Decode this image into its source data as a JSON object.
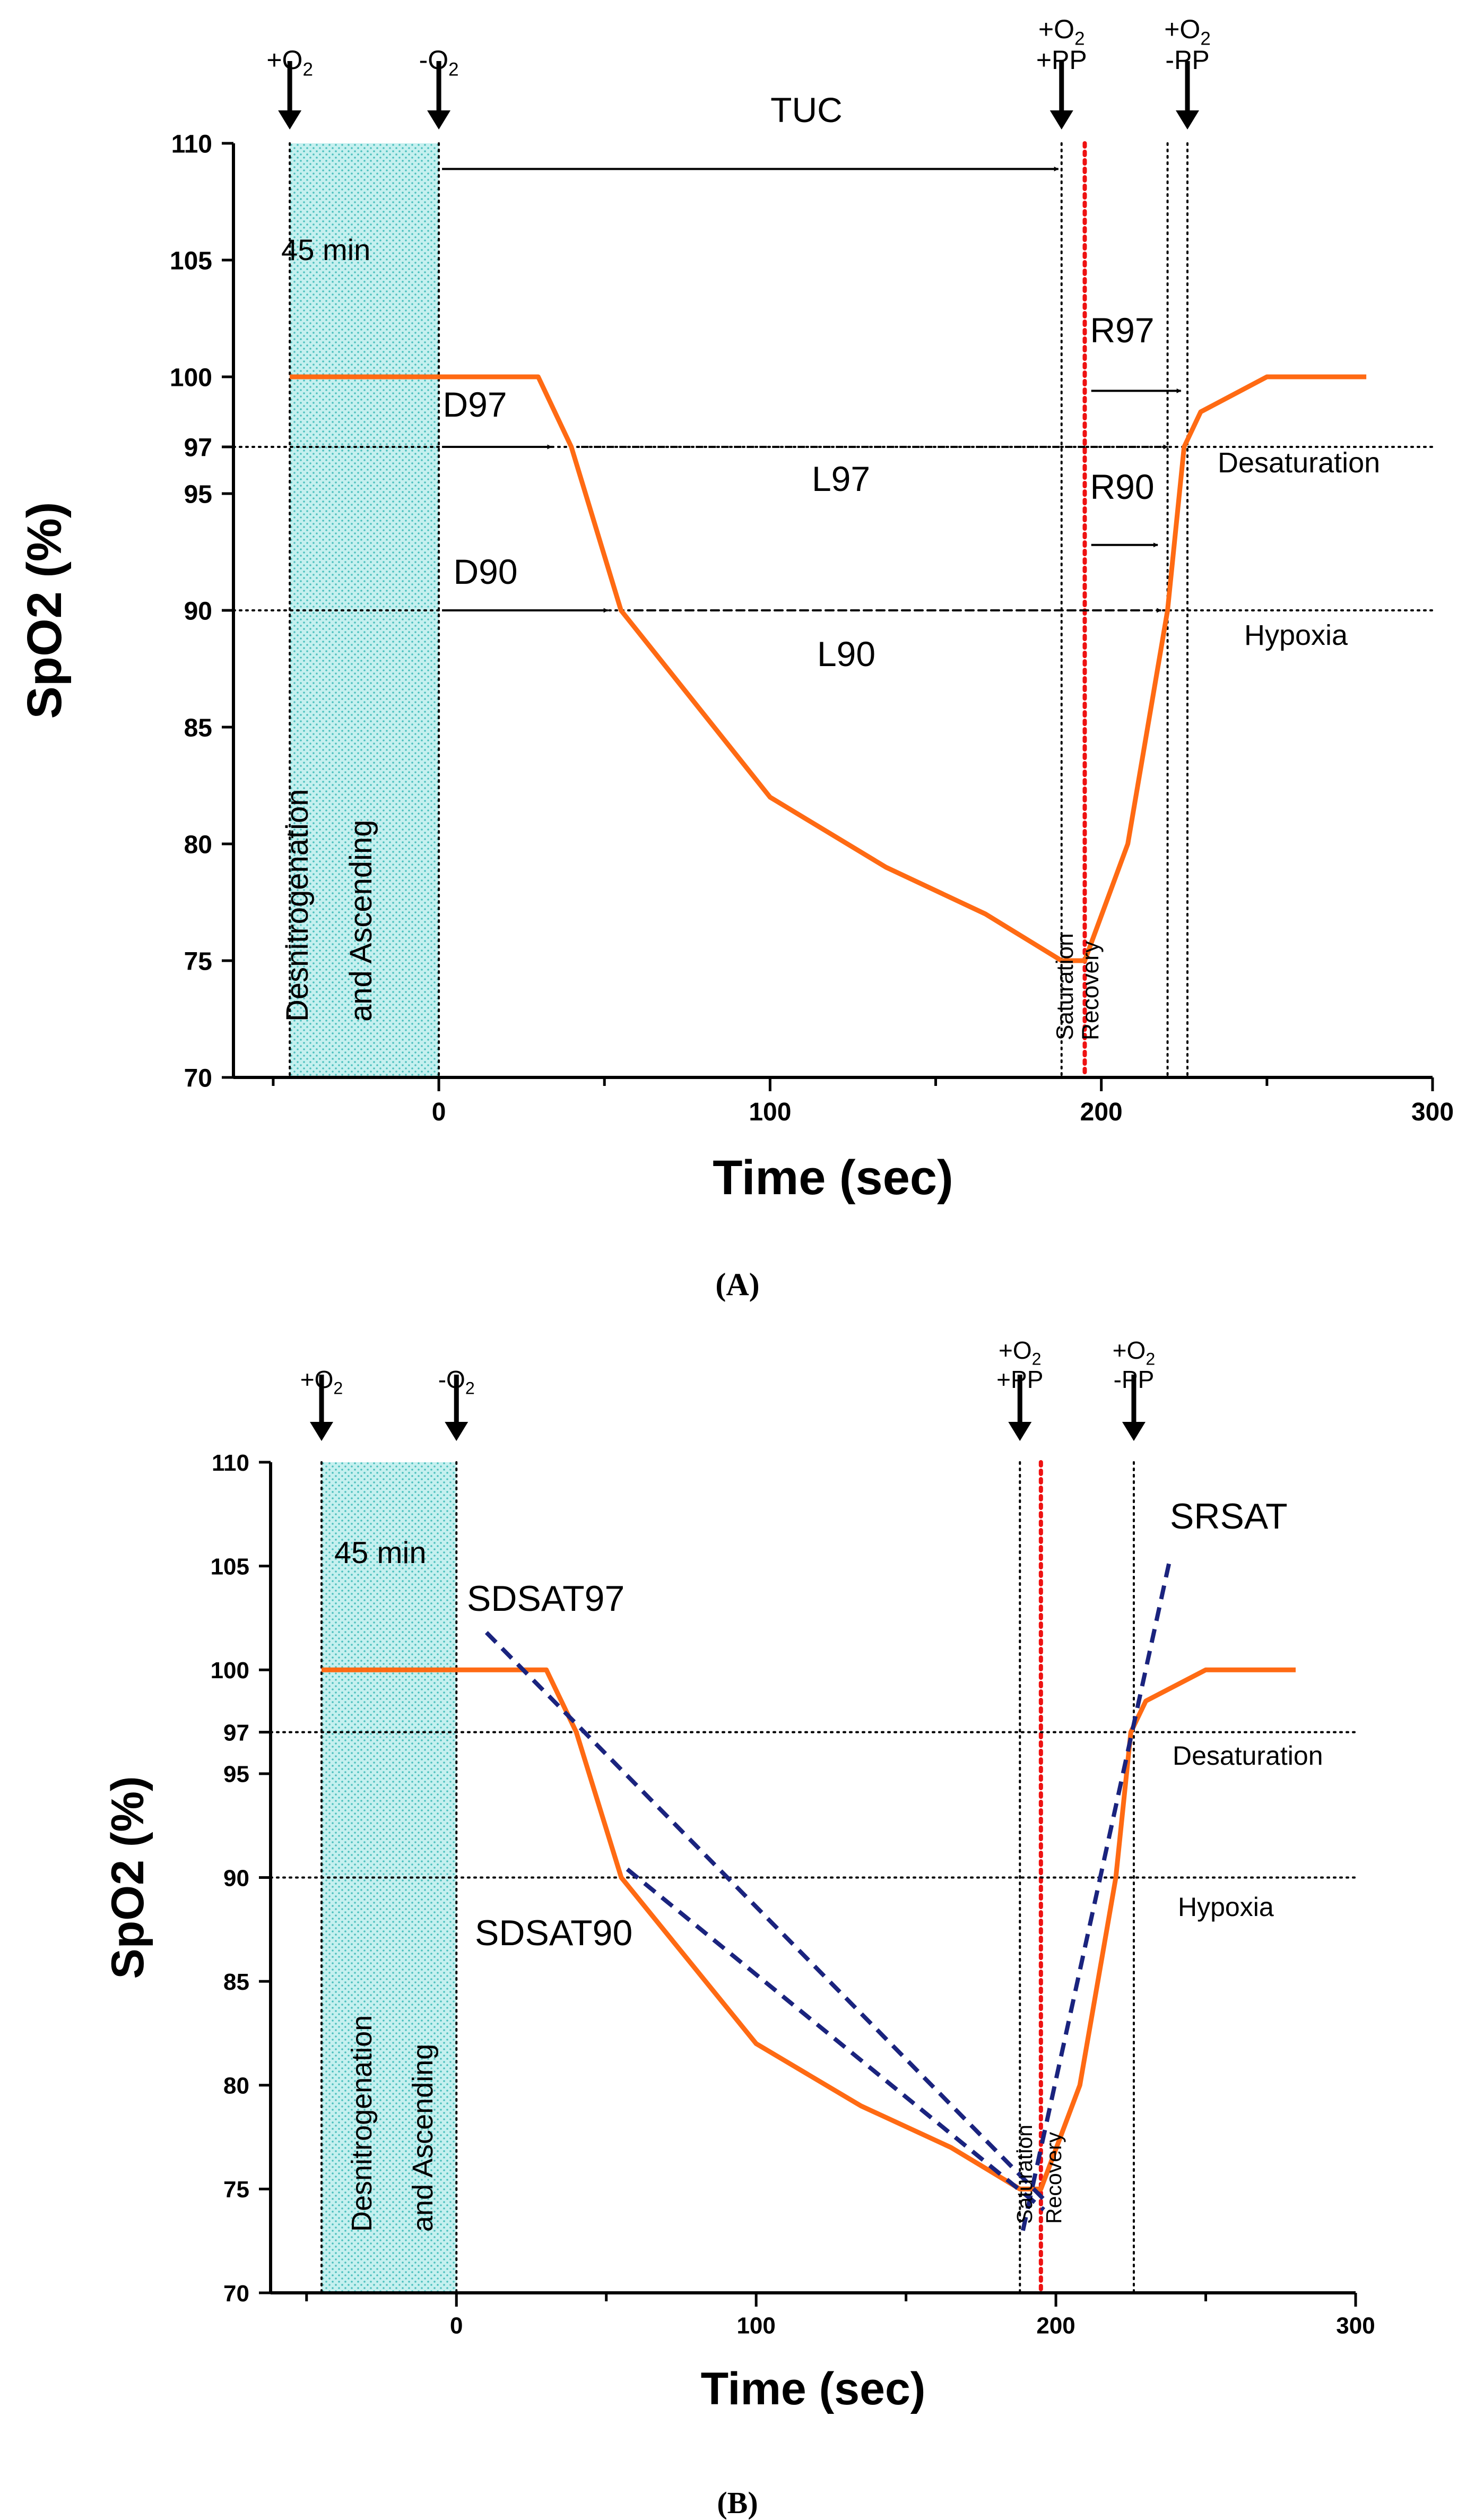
{
  "chart_data": [
    {
      "panel_label": "(A)",
      "type": "line",
      "xlabel": "Time (sec)",
      "ylabel": "SpO2 (%)",
      "xlim": [
        -62,
        300
      ],
      "ylim": [
        70,
        110
      ],
      "xticks": [
        0,
        100,
        200,
        300
      ],
      "yticks": [
        70,
        75,
        80,
        85,
        90,
        95,
        97,
        100,
        105,
        110
      ],
      "series": [
        {
          "name": "SpO2",
          "color": "#ff6a13",
          "x": [
            -45,
            30,
            40,
            55,
            100,
            135,
            165,
            188,
            195,
            208,
            220,
            225,
            230,
            250,
            280
          ],
          "y": [
            100,
            100,
            97,
            90,
            82,
            79,
            77,
            75,
            75,
            80,
            90,
            97,
            98.5,
            100,
            100
          ]
        }
      ],
      "shaded_region": {
        "x": [
          -45,
          0
        ],
        "color": "#5ac8c8",
        "label_top": "45 min",
        "label_vertical": [
          "Desnitrogenation",
          "and Ascending"
        ]
      },
      "vlines": [
        {
          "x": -45,
          "style": "dotted",
          "color": "#000000"
        },
        {
          "x": 0,
          "style": "dotted",
          "color": "#000000"
        },
        {
          "x": 188,
          "style": "dotted",
          "color": "#000000"
        },
        {
          "x": 195,
          "style": "dotted",
          "color": "#ee1111"
        },
        {
          "x": 220,
          "style": "dotted",
          "color": "#000000"
        },
        {
          "x": 226,
          "style": "dotted",
          "color": "#000000"
        }
      ],
      "hlines": [
        {
          "y": 97,
          "style": "dotted",
          "label": "Desaturation"
        },
        {
          "y": 90,
          "style": "dotted",
          "label": "Hypoxia"
        }
      ],
      "markers": [
        {
          "x": -45,
          "lines": [
            "+O",
            "2"
          ]
        },
        {
          "x": 0,
          "lines": [
            "-O",
            "2"
          ]
        },
        {
          "x": 188,
          "lines": [
            "+O",
            "2",
            "+PP"
          ]
        },
        {
          "x": 226,
          "lines": [
            "+O",
            "2",
            "-PP"
          ]
        }
      ],
      "intervals": [
        {
          "label": "TUC",
          "x1": 0,
          "x2": 188,
          "y": 108.9
        },
        {
          "label": "D97",
          "x1": 0,
          "x2": 35,
          "y": 97
        },
        {
          "label": "L97",
          "x1": 42,
          "x2": 221,
          "y": 97
        },
        {
          "label": "D90",
          "x1": 0,
          "x2": 52,
          "y": 90
        },
        {
          "label": "L90",
          "x1": 58,
          "x2": 219,
          "y": 90
        },
        {
          "label": "R97",
          "x1": 196,
          "x2": 225,
          "y": 99.4
        },
        {
          "label": "R90",
          "x1": 196,
          "x2": 218,
          "y": 92.8
        }
      ],
      "annotations": [
        "Saturation",
        "Recovery"
      ]
    },
    {
      "panel_label": "(B)",
      "type": "line",
      "xlabel": "Time (sec)",
      "ylabel": "SpO2 (%)",
      "xlim": [
        -62,
        300
      ],
      "ylim": [
        70,
        110
      ],
      "xticks": [
        0,
        100,
        200,
        300
      ],
      "yticks": [
        70,
        75,
        80,
        85,
        90,
        95,
        97,
        100,
        105,
        110
      ],
      "series": [
        {
          "name": "SpO2",
          "color": "#ff6a13",
          "x": [
            -45,
            30,
            40,
            55,
            100,
            135,
            165,
            188,
            195,
            208,
            220,
            225,
            230,
            250,
            280
          ],
          "y": [
            100,
            100,
            97,
            90,
            82,
            79,
            77,
            75,
            75,
            80,
            90,
            97,
            98.5,
            100,
            100
          ]
        }
      ],
      "fit_lines": [
        {
          "name": "SDSAT97",
          "color": "#1a237e",
          "x": [
            10,
            196
          ],
          "y": [
            101.8,
            74.5
          ]
        },
        {
          "name": "SDSAT90",
          "color": "#1a237e",
          "x": [
            57,
            196
          ],
          "y": [
            90.4,
            74
          ]
        },
        {
          "name": "SRSAT",
          "color": "#1a237e",
          "x": [
            189,
            238
          ],
          "y": [
            73,
            105.3
          ]
        }
      ],
      "shaded_region": {
        "x": [
          -45,
          0
        ],
        "color": "#5ac8c8",
        "label_top": "45 min",
        "label_vertical": [
          "Desnitrogenation",
          "and Ascending"
        ]
      },
      "vlines": [
        {
          "x": -45,
          "style": "dotted",
          "color": "#000000"
        },
        {
          "x": 0,
          "style": "dotted",
          "color": "#000000"
        },
        {
          "x": 188,
          "style": "dotted",
          "color": "#000000"
        },
        {
          "x": 195,
          "style": "dotted",
          "color": "#ee1111"
        },
        {
          "x": 226,
          "style": "dotted",
          "color": "#000000"
        }
      ],
      "hlines": [
        {
          "y": 97,
          "style": "dotted",
          "label": "Desaturation"
        },
        {
          "y": 90,
          "style": "dotted",
          "label": "Hypoxia"
        }
      ],
      "markers": [
        {
          "x": -45,
          "lines": [
            "+O",
            "2"
          ]
        },
        {
          "x": 0,
          "lines": [
            "-O",
            "2"
          ]
        },
        {
          "x": 188,
          "lines": [
            "+O",
            "2",
            "+PP"
          ]
        },
        {
          "x": 226,
          "lines": [
            "+O",
            "2",
            "-PP"
          ]
        }
      ],
      "annotations": [
        "Saturation",
        "Recovery"
      ]
    }
  ]
}
